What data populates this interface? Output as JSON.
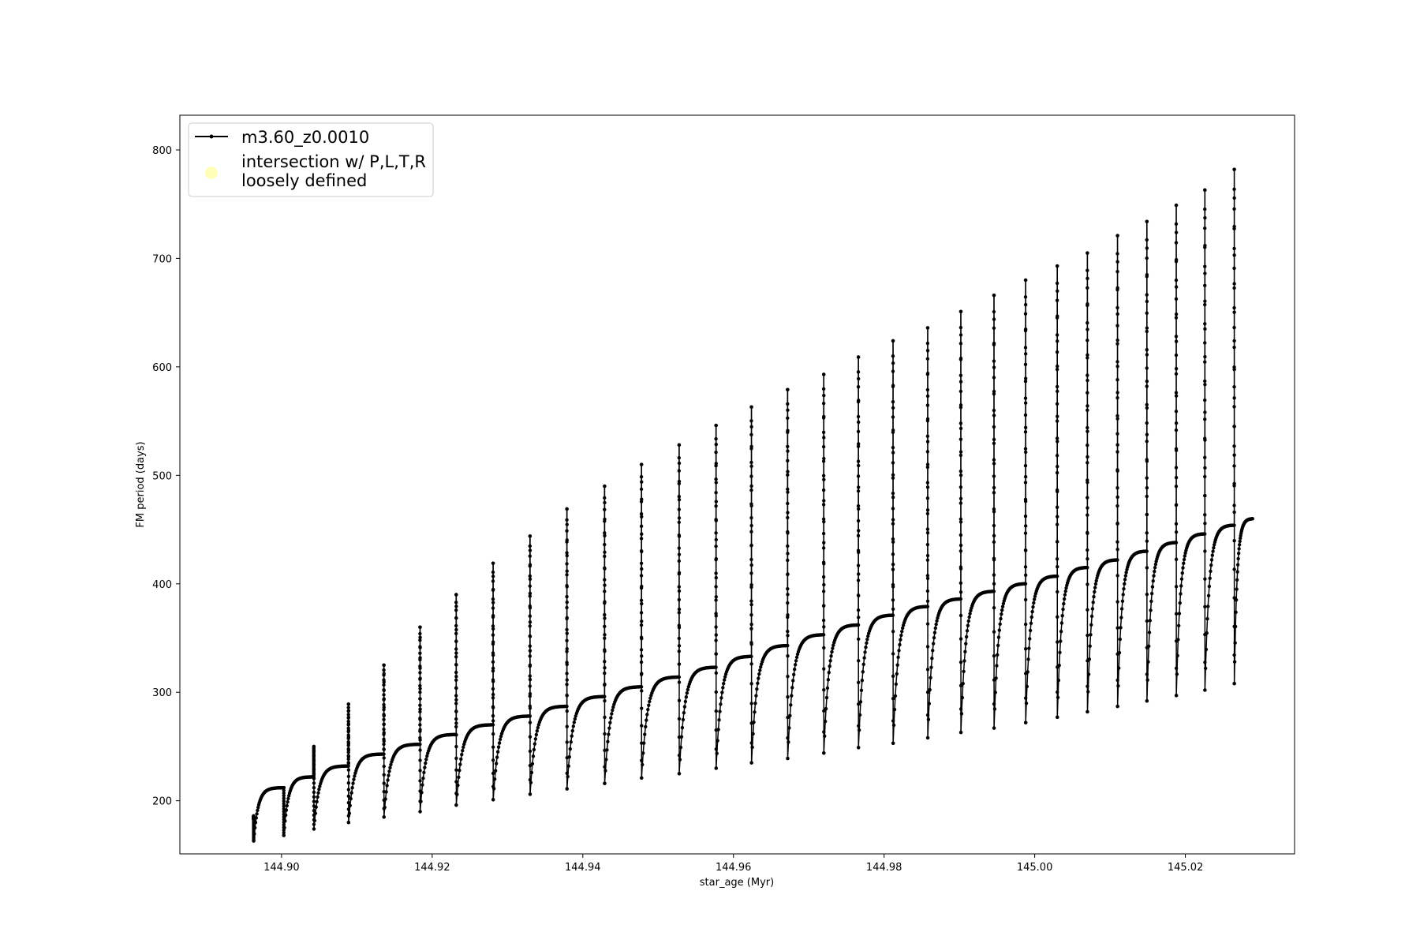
{
  "chart_data": {
    "type": "line",
    "title": "",
    "xlabel": "star_age (Myr)",
    "ylabel": "FM period (days)",
    "xlim": [
      144.8865,
      145.0345
    ],
    "ylim": [
      151,
      832
    ],
    "xticks": [
      "144.90",
      "144.92",
      "144.94",
      "144.96",
      "144.98",
      "145.00",
      "145.02"
    ],
    "yticks": [
      "200",
      "300",
      "400",
      "500",
      "600",
      "700",
      "800"
    ],
    "grid": false,
    "legend_position": "top-left",
    "legend": [
      {
        "label": "m3.60_z0.0010",
        "marker": "line-with-dot",
        "color": "#000000"
      },
      {
        "label_lines": [
          "intersection w/ P,L,T,R",
          "loosely defined"
        ],
        "marker": "circle",
        "color": "#ffffb3"
      }
    ],
    "series": [
      {
        "name": "m3.60_z0.0010",
        "color": "#000000",
        "description_of_shape": "sawtooth pulses; each pulse starts at a dip, rises and saturates to a plateau, then spikes at the pulse boundary",
        "cycles": [
          {
            "start": 144.8963,
            "dip": 163,
            "plateau": 212,
            "spike": 186
          },
          {
            "start": 144.9003,
            "dip": 168,
            "plateau": 222,
            "spike": 212
          },
          {
            "start": 144.9043,
            "dip": 174,
            "plateau": 232,
            "spike": 250
          },
          {
            "start": 144.9089,
            "dip": 180,
            "plateau": 243,
            "spike": 289
          },
          {
            "start": 144.9136,
            "dip": 185,
            "plateau": 252,
            "spike": 325
          },
          {
            "start": 144.9184,
            "dip": 190,
            "plateau": 261,
            "spike": 360
          },
          {
            "start": 144.9232,
            "dip": 196,
            "plateau": 270,
            "spike": 390
          },
          {
            "start": 144.9281,
            "dip": 201,
            "plateau": 278,
            "spike": 419
          },
          {
            "start": 144.933,
            "dip": 206,
            "plateau": 287,
            "spike": 444
          },
          {
            "start": 144.9379,
            "dip": 211,
            "plateau": 296,
            "spike": 469
          },
          {
            "start": 144.9429,
            "dip": 216,
            "plateau": 305,
            "spike": 490
          },
          {
            "start": 144.9478,
            "dip": 221,
            "plateau": 314,
            "spike": 510
          },
          {
            "start": 144.9528,
            "dip": 225,
            "plateau": 323,
            "spike": 528
          },
          {
            "start": 144.9577,
            "dip": 230,
            "plateau": 333,
            "spike": 546
          },
          {
            "start": 144.9624,
            "dip": 235,
            "plateau": 343,
            "spike": 563
          },
          {
            "start": 144.9672,
            "dip": 239,
            "plateau": 353,
            "spike": 579
          },
          {
            "start": 144.972,
            "dip": 244,
            "plateau": 362,
            "spike": 593
          },
          {
            "start": 144.9766,
            "dip": 249,
            "plateau": 371,
            "spike": 609
          },
          {
            "start": 144.9812,
            "dip": 253,
            "plateau": 379,
            "spike": 624
          },
          {
            "start": 144.9858,
            "dip": 258,
            "plateau": 386,
            "spike": 636
          },
          {
            "start": 144.9902,
            "dip": 263,
            "plateau": 393,
            "spike": 651
          },
          {
            "start": 144.9946,
            "dip": 267,
            "plateau": 400,
            "spike": 666
          },
          {
            "start": 144.9988,
            "dip": 272,
            "plateau": 407,
            "spike": 680
          },
          {
            "start": 145.003,
            "dip": 277,
            "plateau": 415,
            "spike": 693
          },
          {
            "start": 145.007,
            "dip": 282,
            "plateau": 422,
            "spike": 705
          },
          {
            "start": 145.011,
            "dip": 287,
            "plateau": 430,
            "spike": 721
          },
          {
            "start": 145.0149,
            "dip": 292,
            "plateau": 438,
            "spike": 734
          },
          {
            "start": 145.0188,
            "dip": 297,
            "plateau": 446,
            "spike": 749
          },
          {
            "start": 145.0226,
            "dip": 302,
            "plateau": 454,
            "spike": 763
          },
          {
            "start": 145.0265,
            "dip": 308,
            "plateau": 460,
            "spike": 782
          }
        ],
        "end_x": 145.029
      }
    ]
  }
}
